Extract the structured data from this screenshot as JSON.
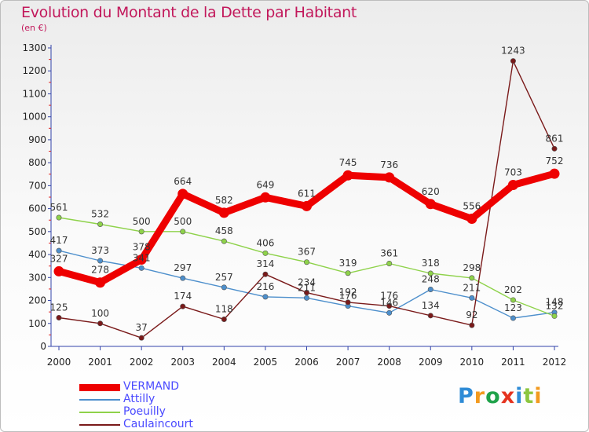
{
  "chart_data": {
    "type": "line",
    "title": "Evolution du Montant de la Dette par Habitant",
    "subtitle": "(en €)",
    "x": [
      "2000",
      "2001",
      "2002",
      "2003",
      "2004",
      "2005",
      "2006",
      "2007",
      "2008",
      "2009",
      "2010",
      "2011",
      "2012"
    ],
    "ylim": [
      0,
      1300
    ],
    "yticks": [
      0,
      100,
      200,
      300,
      400,
      500,
      600,
      700,
      800,
      900,
      1000,
      1100,
      1200,
      1300
    ],
    "grid": false,
    "legend_position": "bottom-left",
    "series": [
      {
        "name": "VERMAND",
        "color": "#ee0000",
        "emphasis": true,
        "values": [
          327,
          278,
          378,
          664,
          582,
          649,
          611,
          745,
          736,
          620,
          556,
          703,
          752
        ]
      },
      {
        "name": "Attilly",
        "color": "#4d8fcc",
        "values": [
          417,
          373,
          341,
          297,
          257,
          216,
          211,
          176,
          146,
          248,
          211,
          123,
          148
        ]
      },
      {
        "name": "Poeuilly",
        "color": "#8ed24a",
        "values": [
          561,
          532,
          500,
          500,
          458,
          406,
          367,
          319,
          361,
          318,
          298,
          202,
          132
        ]
      },
      {
        "name": "Caulaincourt",
        "color": "#7a1a1a",
        "values": [
          125,
          100,
          37,
          174,
          118,
          314,
          234,
          192,
          176,
          134,
          92,
          1243,
          861
        ]
      }
    ]
  },
  "brand": {
    "letters": [
      "P",
      "r",
      "o",
      "x",
      "i",
      "t",
      "i"
    ],
    "colors": [
      "#2e8bd6",
      "#f29a1f",
      "#1fa24a",
      "#e5331f",
      "#2e8bd6",
      "#8cc63f",
      "#f29a1f"
    ]
  }
}
